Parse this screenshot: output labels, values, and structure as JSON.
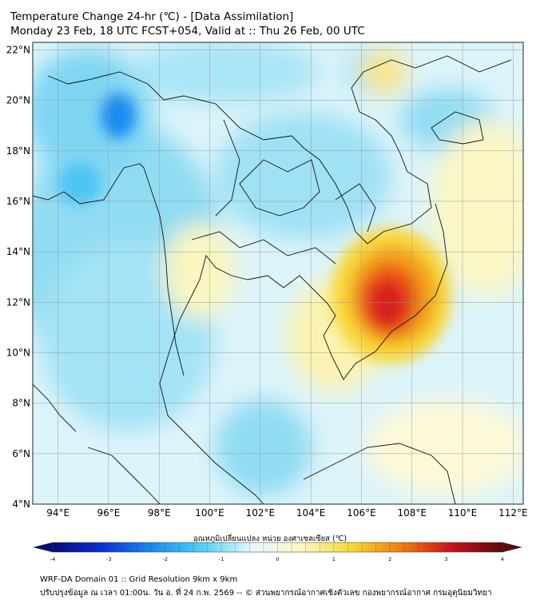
{
  "header": {
    "line1": "Temperature Change 24-hr (℃) - [Data Assimilation]",
    "line2": "Monday 23 Feb, 18 UTC FCST+054, Valid at :: Thu 26 Feb, 00 UTC"
  },
  "map": {
    "lat_labels": [
      "22°N",
      "20°N",
      "18°N",
      "16°N",
      "14°N",
      "12°N",
      "10°N",
      "8°N",
      "6°N",
      "4°N"
    ],
    "lon_labels": [
      "94°E",
      "96°E",
      "98°E",
      "100°E",
      "102°E",
      "104°E",
      "106°E",
      "108°E",
      "110°E",
      "112°E"
    ],
    "lat_range": [
      4,
      22.3
    ],
    "lon_range": [
      93,
      112.4
    ],
    "grid": true,
    "colors": {
      "ocean_bg": "#c5ecf8",
      "land_line": "#111111",
      "grid": "#9a9a9a"
    }
  },
  "colorbar": {
    "title": "อุณหภูมิเปลี่ยนแปลง หน่วย องศาเซลเซียส (℃)",
    "ticks": [
      "-4",
      "-3",
      "-2",
      "-1",
      "0",
      "1",
      "2",
      "3",
      "4"
    ],
    "min": -4,
    "max": 4,
    "colors": [
      "#0a0a7a",
      "#0b2fd8",
      "#1a8cf0",
      "#4fd2f5",
      "#e9f8fb",
      "#fbf7c5",
      "#f5d830",
      "#f07a10",
      "#c8101a",
      "#5c0a0a"
    ]
  },
  "footer": {
    "line1": "WRF-DA Domain 01 :: Grid Resolution 9km x 9km",
    "line2": "ปรับปรุงข้อมูล ณ เวลา 01:00น. วัน อ. ที่ 24 ก.พ. 2569 -- © ส่วนพยากรณ์อากาศเชิงตัวเลข กองพยากรณ์อากาศ กรมอุตุนิยมวิทยา"
  }
}
